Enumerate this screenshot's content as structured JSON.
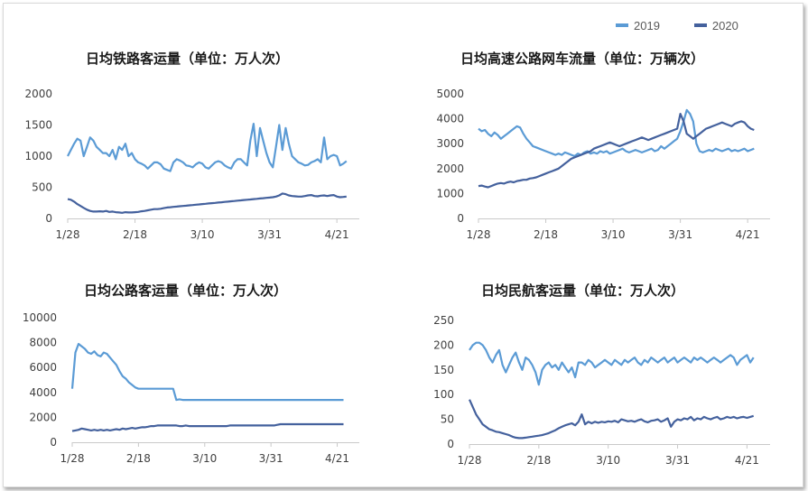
{
  "legend": {
    "series_2019": {
      "label": "2019",
      "color": "#5B9BD5"
    },
    "series_2020": {
      "label": "2020",
      "color": "#44619D"
    }
  },
  "chart_data": [
    {
      "type": "line",
      "title": "日均铁路客运量（单位：万人次）",
      "x_tick_labels": [
        "1/28",
        "2/18",
        "3/10",
        "3/31",
        "4/21"
      ],
      "x_tick_positions": [
        0,
        21,
        42,
        63,
        84
      ],
      "x_range": [
        0,
        91
      ],
      "ylim": [
        0,
        2000
      ],
      "y_ticks": [
        0,
        500,
        1000,
        1500,
        2000
      ],
      "series": [
        {
          "name": "2019",
          "color": "#5B9BD5",
          "values": [
            1000,
            1100,
            1200,
            1280,
            1250,
            1000,
            1150,
            1300,
            1250,
            1150,
            1100,
            1050,
            1050,
            1000,
            1100,
            950,
            1150,
            1100,
            1200,
            1000,
            1050,
            950,
            900,
            880,
            850,
            800,
            850,
            900,
            900,
            870,
            800,
            780,
            760,
            900,
            950,
            930,
            900,
            850,
            840,
            820,
            870,
            900,
            880,
            820,
            800,
            850,
            900,
            920,
            900,
            850,
            820,
            800,
            900,
            950,
            950,
            900,
            850,
            1250,
            1520,
            1000,
            1450,
            1250,
            1050,
            900,
            820,
            1150,
            1500,
            1100,
            1450,
            1200,
            1000,
            950,
            900,
            880,
            850,
            860,
            900,
            920,
            950,
            900,
            1300,
            950,
            1000,
            1020,
            1000,
            850,
            880,
            920
          ]
        },
        {
          "name": "2020",
          "color": "#44619D",
          "values": [
            310,
            300,
            270,
            230,
            200,
            170,
            140,
            120,
            110,
            110,
            115,
            110,
            120,
            105,
            110,
            100,
            95,
            90,
            100,
            95,
            95,
            100,
            105,
            115,
            120,
            130,
            140,
            150,
            150,
            155,
            165,
            175,
            180,
            185,
            190,
            195,
            200,
            205,
            210,
            215,
            220,
            225,
            230,
            235,
            240,
            245,
            250,
            255,
            260,
            265,
            270,
            275,
            280,
            285,
            290,
            295,
            300,
            305,
            310,
            315,
            320,
            325,
            330,
            335,
            340,
            350,
            370,
            400,
            390,
            370,
            360,
            355,
            350,
            350,
            360,
            370,
            375,
            360,
            355,
            365,
            370,
            360,
            370,
            375,
            350,
            340,
            345,
            350
          ]
        }
      ]
    },
    {
      "type": "line",
      "title": "日均高速公路网车流量（单位：万辆次）",
      "x_tick_labels": [
        "1/28",
        "2/18",
        "3/10",
        "3/31",
        "4/21"
      ],
      "x_tick_positions": [
        0,
        21,
        42,
        63,
        84
      ],
      "x_range": [
        0,
        91
      ],
      "ylim": [
        0,
        5000
      ],
      "y_ticks": [
        0,
        1000,
        2000,
        3000,
        4000,
        5000
      ],
      "series": [
        {
          "name": "2019",
          "color": "#5B9BD5",
          "values": [
            3600,
            3500,
            3550,
            3400,
            3300,
            3450,
            3350,
            3200,
            3300,
            3400,
            3500,
            3600,
            3700,
            3650,
            3400,
            3200,
            3050,
            2900,
            2850,
            2800,
            2750,
            2700,
            2650,
            2600,
            2550,
            2600,
            2550,
            2650,
            2600,
            2550,
            2500,
            2600,
            2550,
            2650,
            2700,
            2600,
            2650,
            2600,
            2700,
            2650,
            2700,
            2600,
            2650,
            2700,
            2750,
            2800,
            2700,
            2650,
            2700,
            2750,
            2700,
            2650,
            2700,
            2750,
            2800,
            2700,
            2750,
            2900,
            2800,
            2900,
            3000,
            3100,
            3200,
            3500,
            3900,
            4350,
            4200,
            3900,
            3000,
            2700,
            2650,
            2700,
            2750,
            2700,
            2800,
            2750,
            2700,
            2750,
            2800,
            2700,
            2750,
            2700,
            2750,
            2800,
            2700,
            2750,
            2800
          ]
        },
        {
          "name": "2020",
          "color": "#44619D",
          "values": [
            1300,
            1320,
            1280,
            1250,
            1300,
            1350,
            1400,
            1420,
            1400,
            1450,
            1480,
            1450,
            1500,
            1520,
            1550,
            1550,
            1600,
            1620,
            1650,
            1700,
            1750,
            1800,
            1850,
            1900,
            1950,
            2000,
            2100,
            2200,
            2300,
            2400,
            2450,
            2500,
            2550,
            2600,
            2650,
            2700,
            2800,
            2850,
            2900,
            2950,
            3000,
            3050,
            3000,
            2950,
            2900,
            2950,
            3000,
            3050,
            3100,
            3150,
            3200,
            3250,
            3200,
            3150,
            3200,
            3250,
            3300,
            3350,
            3400,
            3450,
            3500,
            3550,
            3600,
            4200,
            3900,
            3400,
            3300,
            3200,
            3300,
            3400,
            3500,
            3600,
            3650,
            3700,
            3750,
            3800,
            3850,
            3800,
            3750,
            3700,
            3800,
            3850,
            3900,
            3850,
            3700,
            3600,
            3550
          ]
        }
      ]
    },
    {
      "type": "line",
      "title": "日均公路客运量（单位：万人次）",
      "x_tick_labels": [
        "1/28",
        "2/18",
        "3/10",
        "3/31",
        "4/21"
      ],
      "x_tick_positions": [
        0,
        21,
        42,
        63,
        84
      ],
      "x_range": [
        0,
        91
      ],
      "ylim": [
        0,
        10000
      ],
      "y_ticks": [
        0,
        2000,
        4000,
        6000,
        8000,
        10000
      ],
      "series": [
        {
          "name": "2019",
          "color": "#5B9BD5",
          "values": [
            4300,
            7200,
            7900,
            7700,
            7500,
            7200,
            7100,
            7300,
            7000,
            6900,
            7200,
            7100,
            6800,
            6500,
            6200,
            5700,
            5300,
            5100,
            4800,
            4600,
            4400,
            4300,
            4300,
            4300,
            4300,
            4300,
            4300,
            4300,
            4300,
            4300,
            4300,
            4300,
            4300,
            3400,
            3450,
            3400,
            3400,
            3400,
            3400,
            3400,
            3400,
            3400,
            3400,
            3400,
            3400,
            3400,
            3400,
            3400,
            3400,
            3400,
            3400,
            3400,
            3400,
            3400,
            3400,
            3400,
            3400,
            3400,
            3400,
            3400,
            3400,
            3400,
            3400,
            3400,
            3400,
            3400,
            3400,
            3400,
            3400,
            3400,
            3400,
            3400,
            3400,
            3400,
            3400,
            3400,
            3400,
            3400,
            3400,
            3400,
            3400,
            3400,
            3400,
            3400,
            3400,
            3400,
            3400
          ]
        },
        {
          "name": "2020",
          "color": "#44619D",
          "values": [
            900,
            950,
            1000,
            1100,
            1050,
            1000,
            950,
            1000,
            950,
            1000,
            950,
            1000,
            950,
            1000,
            1050,
            1000,
            1100,
            1050,
            1100,
            1150,
            1100,
            1150,
            1200,
            1200,
            1250,
            1300,
            1300,
            1350,
            1350,
            1350,
            1350,
            1350,
            1350,
            1350,
            1300,
            1300,
            1350,
            1300,
            1300,
            1300,
            1300,
            1300,
            1300,
            1300,
            1300,
            1300,
            1300,
            1300,
            1300,
            1300,
            1350,
            1350,
            1350,
            1350,
            1350,
            1350,
            1350,
            1350,
            1350,
            1350,
            1350,
            1350,
            1350,
            1350,
            1350,
            1400,
            1450,
            1450,
            1450,
            1450,
            1450,
            1450,
            1450,
            1450,
            1450,
            1450,
            1450,
            1450,
            1450,
            1450,
            1450,
            1450,
            1450,
            1450,
            1450,
            1450,
            1450
          ]
        }
      ]
    },
    {
      "type": "line",
      "title": "日均民航客运量（单位：万人次）",
      "x_tick_labels": [
        "1/28",
        "2/18",
        "3/10",
        "3/31",
        "4/21"
      ],
      "x_tick_positions": [
        0,
        21,
        42,
        63,
        84
      ],
      "x_range": [
        0,
        91
      ],
      "ylim": [
        0,
        250
      ],
      "y_ticks": [
        0,
        50,
        100,
        150,
        200,
        250
      ],
      "series": [
        {
          "name": "2019",
          "color": "#5B9BD5",
          "values": [
            190,
            200,
            205,
            205,
            200,
            190,
            175,
            165,
            180,
            190,
            160,
            145,
            160,
            175,
            185,
            165,
            150,
            175,
            170,
            160,
            145,
            120,
            150,
            160,
            165,
            155,
            160,
            150,
            165,
            155,
            145,
            155,
            135,
            165,
            165,
            160,
            170,
            165,
            155,
            160,
            165,
            170,
            165,
            160,
            170,
            165,
            160,
            170,
            165,
            170,
            175,
            165,
            160,
            170,
            165,
            175,
            170,
            165,
            170,
            175,
            165,
            170,
            175,
            165,
            170,
            175,
            170,
            165,
            175,
            170,
            175,
            170,
            165,
            170,
            175,
            170,
            165,
            170,
            175,
            180,
            175,
            160,
            170,
            175,
            180,
            165,
            175
          ]
        },
        {
          "name": "2020",
          "color": "#44619D",
          "values": [
            90,
            75,
            60,
            50,
            40,
            35,
            30,
            28,
            25,
            24,
            22,
            20,
            18,
            15,
            13,
            12,
            12,
            13,
            14,
            15,
            16,
            17,
            18,
            20,
            22,
            25,
            28,
            32,
            35,
            38,
            40,
            42,
            38,
            45,
            60,
            40,
            45,
            42,
            45,
            43,
            45,
            44,
            46,
            45,
            47,
            44,
            50,
            48,
            46,
            47,
            45,
            48,
            50,
            46,
            44,
            47,
            48,
            50,
            45,
            48,
            52,
            35,
            45,
            50,
            48,
            52,
            50,
            55,
            48,
            52,
            50,
            55,
            52,
            50,
            53,
            55,
            50,
            52,
            55,
            53,
            55,
            52,
            54,
            55,
            53,
            55,
            57
          ]
        }
      ]
    }
  ]
}
